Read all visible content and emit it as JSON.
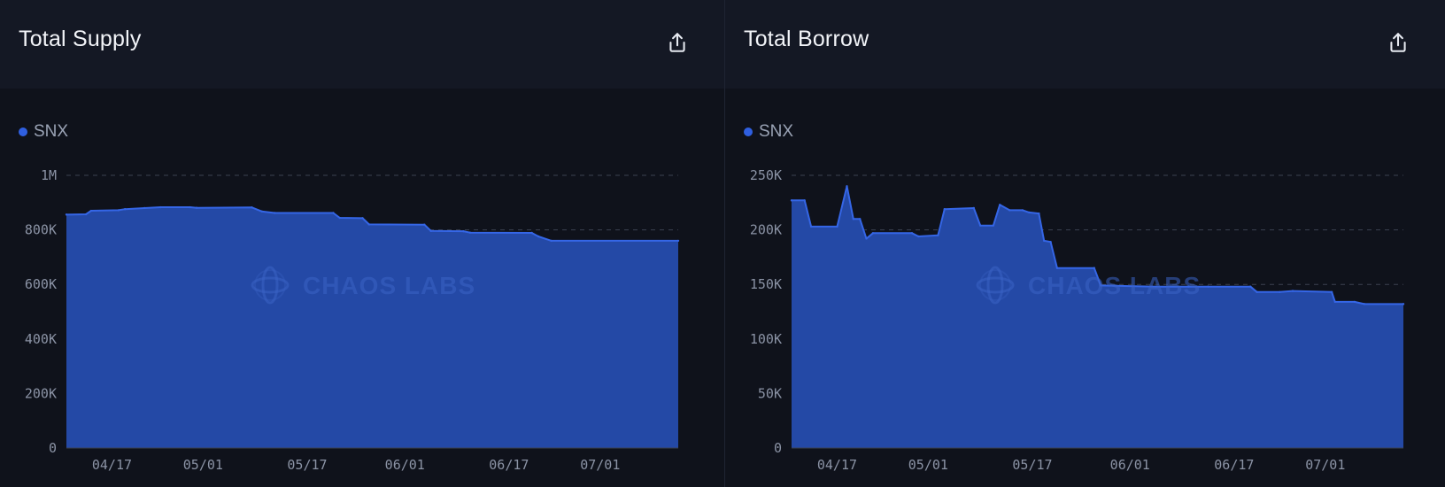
{
  "colors": {
    "area_fill": "#2449a6",
    "area_stroke": "#3566e6",
    "legend_dot": "#2f5fe0",
    "grid": "#3b4150"
  },
  "panels": [
    {
      "title": "Total Supply",
      "export_icon": "share-upload-icon",
      "legend": "SNX"
    },
    {
      "title": "Total Borrow",
      "export_icon": "share-upload-icon",
      "legend": "SNX"
    }
  ],
  "watermark": "CHAOS LABS",
  "chart_data": [
    {
      "type": "area",
      "title": "Total Supply",
      "series": [
        {
          "name": "SNX"
        }
      ],
      "x_ticks": [
        "04/17",
        "05/01",
        "05/17",
        "06/01",
        "06/17",
        "07/01"
      ],
      "x_tick_days": [
        7,
        21,
        37,
        52,
        68,
        82
      ],
      "x_range_days": [
        0,
        94
      ],
      "y_ticks": [
        "0",
        "200K",
        "400K",
        "600K",
        "800K",
        "1M"
      ],
      "ylim": [
        0,
        1000000
      ],
      "points": [
        [
          0,
          856000
        ],
        [
          3,
          857000
        ],
        [
          3.8,
          870000
        ],
        [
          8,
          872000
        ],
        [
          9,
          876000
        ],
        [
          12,
          880000
        ],
        [
          14.5,
          883000
        ],
        [
          19,
          883000
        ],
        [
          20,
          881000
        ],
        [
          28.5,
          882000
        ],
        [
          30,
          868000
        ],
        [
          32,
          862000
        ],
        [
          41,
          862000
        ],
        [
          42,
          844000
        ],
        [
          45.5,
          843000
        ],
        [
          46.5,
          820000
        ],
        [
          55,
          819000
        ],
        [
          56,
          796000
        ],
        [
          61,
          795000
        ],
        [
          62,
          790000
        ],
        [
          71.5,
          789000
        ],
        [
          72.5,
          776000
        ],
        [
          74.5,
          760000
        ],
        [
          94,
          760000
        ]
      ]
    },
    {
      "type": "area",
      "title": "Total Borrow",
      "series": [
        {
          "name": "SNX"
        }
      ],
      "x_ticks": [
        "04/17",
        "05/01",
        "05/17",
        "06/01",
        "06/17",
        "07/01"
      ],
      "x_tick_days": [
        7,
        21,
        37,
        52,
        68,
        82
      ],
      "x_range_days": [
        0,
        94
      ],
      "y_ticks": [
        "0",
        "50K",
        "100K",
        "150K",
        "200K",
        "250K"
      ],
      "ylim": [
        0,
        250000
      ],
      "points": [
        [
          0,
          227000
        ],
        [
          2,
          227000
        ],
        [
          3,
          203000
        ],
        [
          7,
          203000
        ],
        [
          8.5,
          240000
        ],
        [
          9.5,
          210000
        ],
        [
          10.5,
          210000
        ],
        [
          11.5,
          192000
        ],
        [
          12.5,
          197000
        ],
        [
          18.5,
          197000
        ],
        [
          19.5,
          194000
        ],
        [
          22.5,
          195000
        ],
        [
          23.5,
          219000
        ],
        [
          28,
          220000
        ],
        [
          29,
          204000
        ],
        [
          31,
          204000
        ],
        [
          32,
          223000
        ],
        [
          33.5,
          218000
        ],
        [
          35.5,
          218000
        ],
        [
          36.5,
          216000
        ],
        [
          38,
          215000
        ],
        [
          38.8,
          190000
        ],
        [
          39.8,
          189000
        ],
        [
          40.8,
          165000
        ],
        [
          46.5,
          165000
        ],
        [
          47.5,
          149000
        ],
        [
          56,
          148000
        ],
        [
          61,
          148000
        ],
        [
          64,
          148000
        ],
        [
          70.5,
          148000
        ],
        [
          71.5,
          143000
        ],
        [
          75,
          143000
        ],
        [
          77,
          144000
        ],
        [
          83,
          143000
        ],
        [
          83.5,
          134000
        ],
        [
          86.5,
          134000
        ],
        [
          88,
          132000
        ],
        [
          94,
          132000
        ]
      ]
    }
  ]
}
